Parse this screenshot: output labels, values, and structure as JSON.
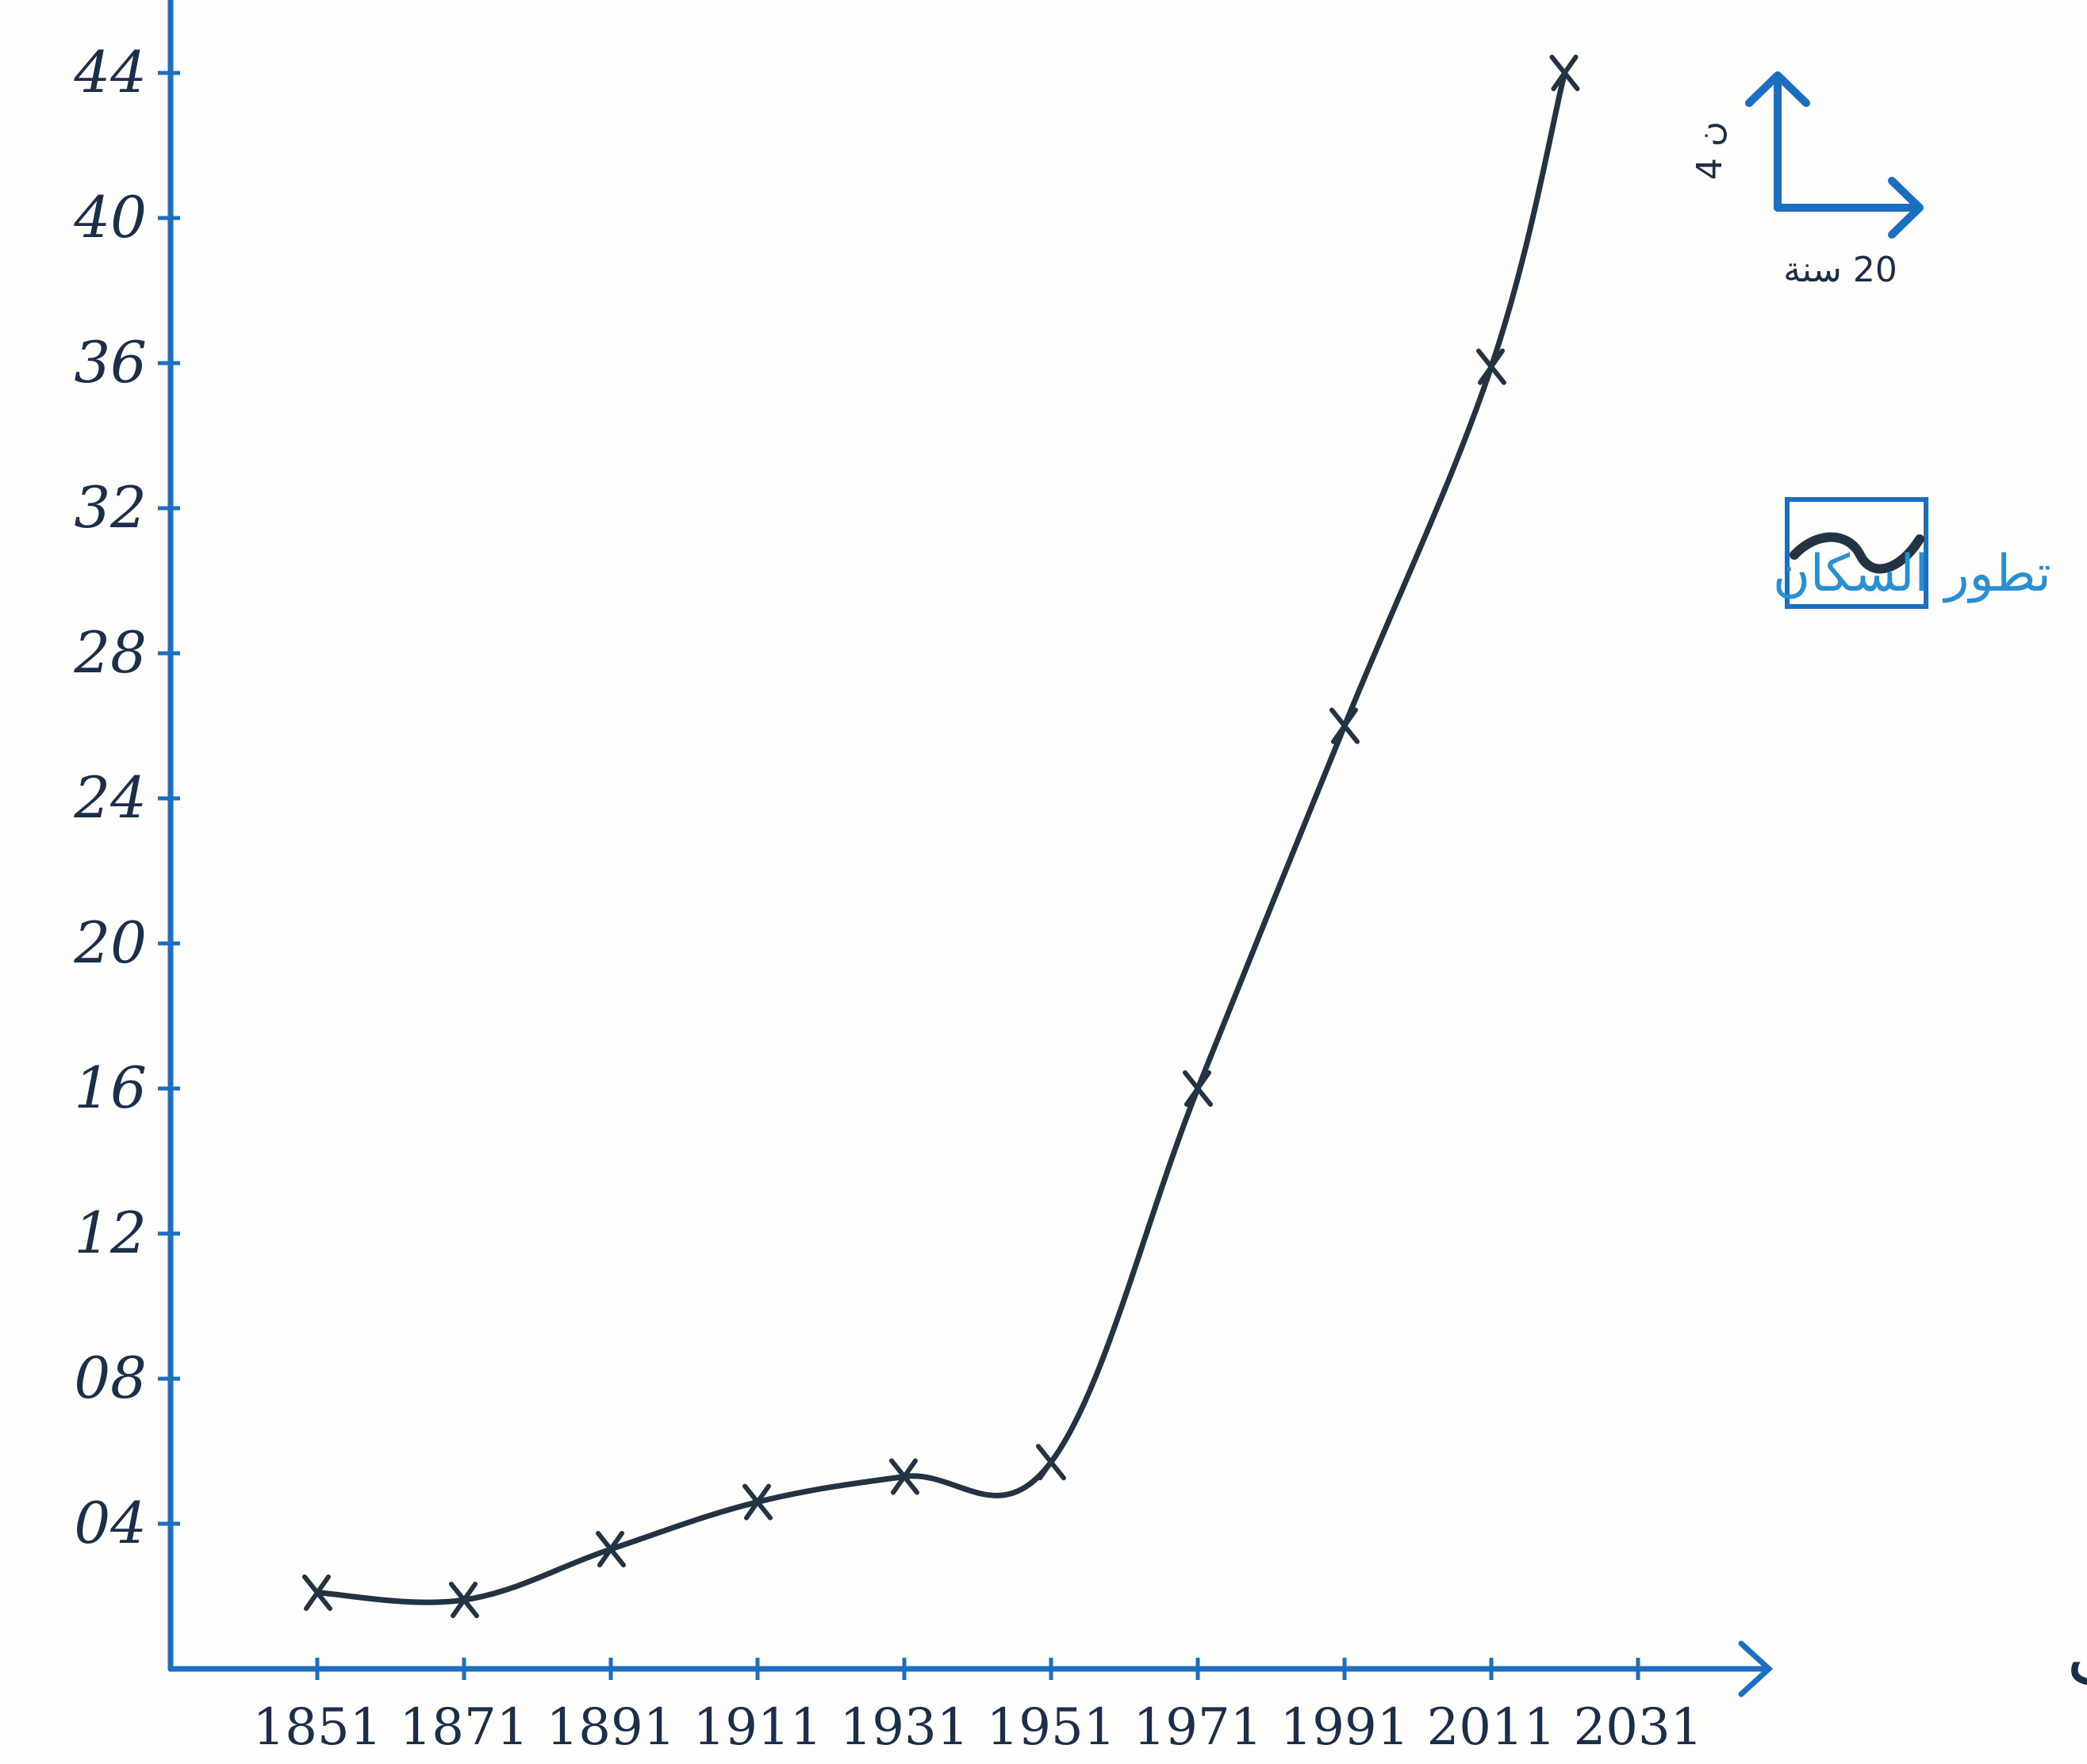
{
  "chart_data": {
    "type": "line",
    "xlabel": "السنوات",
    "ylabel": "",
    "title": "",
    "x_ticks": [
      "1851",
      "1871",
      "1891",
      "1911",
      "1931",
      "1951",
      "1971",
      "1991",
      "2011",
      "2031"
    ],
    "y_ticks": [
      "04",
      "08",
      "12",
      "16",
      "20",
      "24",
      "28",
      "32",
      "36",
      "40",
      "44"
    ],
    "xlim": [
      1851,
      2031
    ],
    "ylim": [
      0,
      44
    ],
    "grid": false,
    "legend_position": "top-right",
    "series": [
      {
        "name": "تطور السكان",
        "x": [
          1851,
          1871,
          1891,
          1911,
          1931,
          1951,
          1971,
          1991,
          2011,
          2021
        ],
        "y": [
          2.1,
          1.9,
          3.3,
          4.6,
          5.3,
          5.7,
          16.0,
          26.0,
          35.9,
          44.0
        ]
      }
    ],
    "scale_note": {
      "vertical": "4 ن",
      "horizontal": "20 سنة"
    },
    "colors": {
      "axis": "#1c6fc0",
      "line": "#223344",
      "legend_text": "#2a8fd0"
    }
  }
}
